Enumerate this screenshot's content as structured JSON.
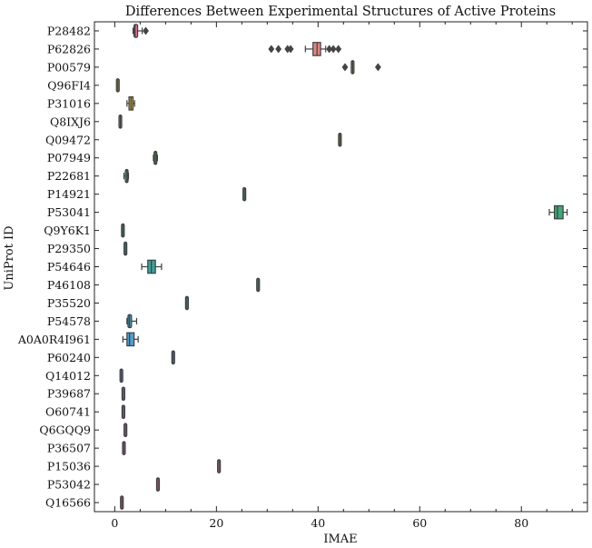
{
  "chart_data": {
    "type": "box",
    "orientation": "horizontal",
    "title": "Differences Between Experimental Structures of Active Proteins",
    "xlabel": "IMAE",
    "ylabel": "UniProt ID",
    "xlim": [
      -4,
      93
    ],
    "x_ticks": [
      0,
      20,
      40,
      60,
      80
    ],
    "grid": false,
    "categories": [
      "P28482",
      "P62826",
      "P00579",
      "Q96FI4",
      "P31016",
      "Q8IXJ6",
      "Q09472",
      "P07949",
      "P22681",
      "P14921",
      "P53041",
      "Q9Y6K1",
      "P29350",
      "P54646",
      "P46108",
      "P35520",
      "P54578",
      "A0A0R4I961",
      "P60240",
      "Q14012",
      "P39687",
      "O60741",
      "Q6GQQ9",
      "P36507",
      "P15036",
      "P53042",
      "Q16566"
    ],
    "boxes": [
      {
        "id": "P28482",
        "color": "#e0708a",
        "min": 3.6,
        "q1": 3.8,
        "median": 4.0,
        "q3": 4.5,
        "max": 5.4,
        "outliers": [
          6.1
        ]
      },
      {
        "id": "P62826",
        "color": "#e0877e",
        "min": 37.5,
        "q1": 39.0,
        "median": 39.8,
        "q3": 40.5,
        "max": 41.5,
        "outliers": [
          30.8,
          32.2,
          34.0,
          34.6,
          42.2,
          43.0,
          44.0
        ]
      },
      {
        "id": "P00579",
        "color": "#d99463",
        "min": 46.8,
        "q1": 46.8,
        "median": 46.8,
        "q3": 46.8,
        "max": 46.8,
        "outliers": [
          45.3,
          51.8
        ]
      },
      {
        "id": "Q96FI4",
        "color": "#c9a256",
        "min": 0.6,
        "q1": 0.6,
        "median": 0.6,
        "q3": 0.6,
        "max": 0.6,
        "outliers": []
      },
      {
        "id": "P31016",
        "color": "#b1a548",
        "min": 2.4,
        "q1": 2.8,
        "median": 3.2,
        "q3": 3.6,
        "max": 3.9,
        "outliers": []
      },
      {
        "id": "Q8IXJ6",
        "color": "#99a84e",
        "min": 1.1,
        "q1": 1.1,
        "median": 1.1,
        "q3": 1.1,
        "max": 1.1,
        "outliers": []
      },
      {
        "id": "Q09472",
        "color": "#7fae55",
        "min": 44.3,
        "q1": 44.3,
        "median": 44.3,
        "q3": 44.3,
        "max": 44.3,
        "outliers": []
      },
      {
        "id": "P07949",
        "color": "#55b05a",
        "min": 7.6,
        "q1": 7.8,
        "median": 8.0,
        "q3": 8.2,
        "max": 8.4,
        "outliers": []
      },
      {
        "id": "P22681",
        "color": "#4bb07a",
        "min": 1.8,
        "q1": 2.1,
        "median": 2.4,
        "q3": 2.6,
        "max": 2.7,
        "outliers": []
      },
      {
        "id": "P14921",
        "color": "#47ae8c",
        "min": 25.5,
        "q1": 25.5,
        "median": 25.5,
        "q3": 25.5,
        "max": 25.5,
        "outliers": []
      },
      {
        "id": "P53041",
        "color": "#3da87a",
        "min": 85.5,
        "q1": 86.5,
        "median": 87.1,
        "q3": 88.2,
        "max": 89.0,
        "outliers": []
      },
      {
        "id": "Q9Y6K1",
        "color": "#47ad9c",
        "min": 1.6,
        "q1": 1.6,
        "median": 1.6,
        "q3": 1.6,
        "max": 1.6,
        "outliers": []
      },
      {
        "id": "P29350",
        "color": "#48abaa",
        "min": 2.1,
        "q1": 2.1,
        "median": 2.1,
        "q3": 2.1,
        "max": 2.1,
        "outliers": []
      },
      {
        "id": "P54646",
        "color": "#38a49c",
        "min": 5.3,
        "q1": 6.5,
        "median": 7.2,
        "q3": 8.0,
        "max": 9.2,
        "outliers": []
      },
      {
        "id": "P46108",
        "color": "#4aaab8",
        "min": 28.2,
        "q1": 28.2,
        "median": 28.2,
        "q3": 28.2,
        "max": 28.2,
        "outliers": []
      },
      {
        "id": "P35520",
        "color": "#4ba8c2",
        "min": 14.2,
        "q1": 14.2,
        "median": 14.2,
        "q3": 14.2,
        "max": 14.2,
        "outliers": []
      },
      {
        "id": "P54578",
        "color": "#48a5c6",
        "min": 2.4,
        "q1": 2.6,
        "median": 2.9,
        "q3": 3.3,
        "max": 4.3,
        "outliers": []
      },
      {
        "id": "A0A0R4I961",
        "color": "#4f9fd0",
        "min": 1.6,
        "q1": 2.4,
        "median": 2.9,
        "q3": 3.8,
        "max": 4.6,
        "outliers": []
      },
      {
        "id": "P60240",
        "color": "#6a9ad8",
        "min": 11.5,
        "q1": 11.5,
        "median": 11.5,
        "q3": 11.5,
        "max": 11.5,
        "outliers": []
      },
      {
        "id": "Q14012",
        "color": "#8a96dc",
        "min": 1.3,
        "q1": 1.3,
        "median": 1.3,
        "q3": 1.3,
        "max": 1.3,
        "outliers": []
      },
      {
        "id": "P39687",
        "color": "#9e8fdc",
        "min": 1.6,
        "q1": 1.6,
        "median": 1.7,
        "q3": 1.8,
        "max": 1.8,
        "outliers": []
      },
      {
        "id": "O60741",
        "color": "#b08adb",
        "min": 1.7,
        "q1": 1.7,
        "median": 1.7,
        "q3": 1.7,
        "max": 1.7,
        "outliers": []
      },
      {
        "id": "Q6GQQ9",
        "color": "#c484d6",
        "min": 2.1,
        "q1": 2.1,
        "median": 2.1,
        "q3": 2.1,
        "max": 2.1,
        "outliers": []
      },
      {
        "id": "P36507",
        "color": "#d57fcc",
        "min": 1.8,
        "q1": 1.8,
        "median": 1.8,
        "q3": 1.8,
        "max": 1.8,
        "outliers": []
      },
      {
        "id": "P15036",
        "color": "#df7bbe",
        "min": 20.5,
        "q1": 20.5,
        "median": 20.5,
        "q3": 20.5,
        "max": 20.5,
        "outliers": []
      },
      {
        "id": "P53042",
        "color": "#e278ad",
        "min": 8.5,
        "q1": 8.5,
        "median": 8.5,
        "q3": 8.5,
        "max": 8.5,
        "outliers": []
      },
      {
        "id": "Q16566",
        "color": "#e3769e",
        "min": 1.4,
        "q1": 1.4,
        "median": 1.4,
        "q3": 1.4,
        "max": 1.4,
        "outliers": []
      }
    ]
  }
}
